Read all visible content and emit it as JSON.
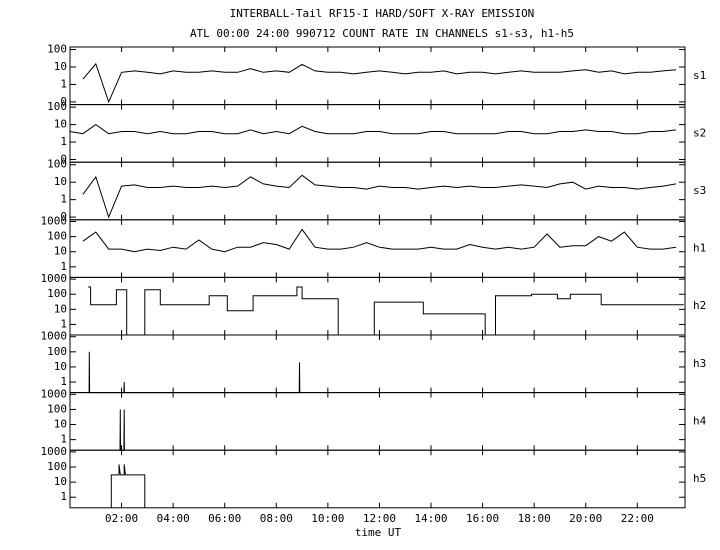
{
  "title": "INTERBALL-Tail RF15-I HARD/SOFT X-RAY EMISSION",
  "subtitle": "ATL 00:00 24:00 990712  COUNT RATE IN CHANNELS s1-s3, h1-h5",
  "xlabel": "time UT",
  "xlim": [
    0,
    23.85
  ],
  "xticks": [
    {
      "value": 2,
      "label": "02:00"
    },
    {
      "value": 4,
      "label": "04:00"
    },
    {
      "value": 6,
      "label": "06:00"
    },
    {
      "value": 8,
      "label": "08:00"
    },
    {
      "value": 10,
      "label": "10:00"
    },
    {
      "value": 12,
      "label": "12:00"
    },
    {
      "value": 14,
      "label": "14:00"
    },
    {
      "value": 16,
      "label": "16:00"
    },
    {
      "value": 18,
      "label": "18:00"
    },
    {
      "value": 20,
      "label": "20:00"
    },
    {
      "value": 22,
      "label": "22:00"
    }
  ],
  "chart_data": [
    {
      "type": "line",
      "name": "s1",
      "color": "#000000",
      "log_y": true,
      "ylim": [
        0.07,
        140
      ],
      "yticks": [
        100,
        10,
        1,
        {
          "value": 0.1,
          "label": "0"
        }
      ],
      "x": [
        0,
        0.5,
        1,
        1.5,
        2,
        2.5,
        3,
        3.5,
        4,
        4.5,
        5,
        5.5,
        6,
        6.5,
        7,
        7.5,
        8,
        8.5,
        9,
        9.5,
        10,
        10.5,
        11,
        11.5,
        12,
        12.5,
        13,
        13.5,
        14,
        14.5,
        15,
        15.5,
        16,
        16.5,
        17,
        17.5,
        18,
        18.5,
        19,
        19.5,
        20,
        20.5,
        21,
        21.5,
        22,
        22.5,
        23,
        23.5
      ],
      "values": [
        null,
        2,
        15,
        0.1,
        5,
        6,
        5,
        4,
        6,
        5,
        5,
        6,
        5,
        5,
        8,
        5,
        6,
        5,
        14,
        6,
        5,
        5,
        4,
        5,
        6,
        5,
        4,
        5,
        5,
        6,
        4,
        5,
        5,
        4,
        5,
        6,
        5,
        5,
        5,
        6,
        7,
        5,
        6,
        4,
        5,
        5,
        6,
        7
      ]
    },
    {
      "type": "line",
      "name": "s2",
      "color": "#000000",
      "log_y": true,
      "ylim": [
        0.07,
        140
      ],
      "yticks": [
        100,
        10,
        1,
        {
          "value": 0.1,
          "label": "0"
        }
      ],
      "x": [
        0,
        0.5,
        1,
        1.5,
        2,
        2.5,
        3,
        3.5,
        4,
        4.5,
        5,
        5.5,
        6,
        6.5,
        7,
        7.5,
        8,
        8.5,
        9,
        9.5,
        10,
        10.5,
        11,
        11.5,
        12,
        12.5,
        13,
        13.5,
        14,
        14.5,
        15,
        15.5,
        16,
        16.5,
        17,
        17.5,
        18,
        18.5,
        19,
        19.5,
        20,
        20.5,
        21,
        21.5,
        22,
        22.5,
        23,
        23.5
      ],
      "values": [
        4,
        3,
        10,
        3,
        4,
        4,
        3,
        4,
        3,
        3,
        4,
        4,
        3,
        3,
        5,
        3,
        4,
        3,
        8,
        4,
        3,
        3,
        3,
        4,
        4,
        3,
        3,
        3,
        4,
        4,
        3,
        3,
        3,
        3,
        4,
        4,
        3,
        3,
        4,
        4,
        5,
        4,
        4,
        3,
        3,
        4,
        4,
        5
      ]
    },
    {
      "type": "line",
      "name": "s3",
      "color": "#000000",
      "log_y": true,
      "ylim": [
        0.07,
        140
      ],
      "yticks": [
        100,
        10,
        1,
        {
          "value": 0.1,
          "label": "0"
        }
      ],
      "x": [
        0,
        0.5,
        1,
        1.5,
        2,
        2.5,
        3,
        3.5,
        4,
        4.5,
        5,
        5.5,
        6,
        6.5,
        7,
        7.5,
        8,
        8.5,
        9,
        9.5,
        10,
        10.5,
        11,
        11.5,
        12,
        12.5,
        13,
        13.5,
        14,
        14.5,
        15,
        15.5,
        16,
        16.5,
        17,
        17.5,
        18,
        18.5,
        19,
        19.5,
        20,
        20.5,
        21,
        21.5,
        22,
        22.5,
        23,
        23.5
      ],
      "values": [
        null,
        2,
        20,
        0.1,
        6,
        7,
        5,
        5,
        6,
        5,
        5,
        6,
        5,
        6,
        20,
        8,
        6,
        5,
        25,
        7,
        6,
        5,
        5,
        4,
        6,
        5,
        5,
        4,
        5,
        6,
        5,
        6,
        5,
        5,
        6,
        7,
        6,
        5,
        8,
        10,
        4,
        6,
        5,
        5,
        4,
        5,
        6,
        8
      ]
    },
    {
      "type": "line",
      "name": "h1",
      "color": "#000000",
      "log_y": true,
      "ylim": [
        0.2,
        1300
      ],
      "yticks": [
        1000,
        100,
        10,
        1
      ],
      "x": [
        0,
        0.5,
        1,
        1.5,
        2,
        2.5,
        3,
        3.5,
        4,
        4.5,
        5,
        5.5,
        6,
        6.5,
        7,
        7.5,
        8,
        8.5,
        9,
        9.5,
        10,
        10.5,
        11,
        11.5,
        12,
        12.5,
        13,
        13.5,
        14,
        14.5,
        15,
        15.5,
        16,
        16.5,
        17,
        17.5,
        18,
        18.5,
        19,
        19.5,
        20,
        20.5,
        21,
        21.5,
        22,
        22.5,
        23,
        23.5
      ],
      "values": [
        null,
        50,
        200,
        15,
        15,
        10,
        15,
        12,
        20,
        15,
        60,
        15,
        10,
        20,
        20,
        40,
        30,
        15,
        300,
        20,
        15,
        15,
        20,
        40,
        20,
        15,
        15,
        15,
        20,
        15,
        15,
        30,
        20,
        15,
        20,
        15,
        20,
        150,
        20,
        25,
        25,
        100,
        50,
        200,
        20,
        15,
        15,
        20
      ]
    },
    {
      "type": "line",
      "name": "h2",
      "color": "#000000",
      "log_y": true,
      "ylim": [
        0.2,
        1300
      ],
      "yticks": [
        1000,
        100,
        10,
        1
      ],
      "x": [
        0.7,
        0.8,
        0.8,
        1.8,
        1.8,
        2.2,
        2.2,
        2.9,
        2.9,
        3.5,
        3.5,
        5.4,
        5.4,
        6.1,
        6.1,
        7.1,
        7.1,
        8.8,
        8.8,
        9,
        9,
        10.4,
        10.4,
        11.8,
        11.8,
        13.7,
        13.7,
        16.1,
        16.1,
        16.5,
        16.5,
        17.9,
        17.9,
        18.9,
        18.9,
        19.4,
        19.4,
        20.6,
        20.6,
        23.8
      ],
      "values": [
        300,
        300,
        20,
        20,
        200,
        200,
        0.2,
        0.2,
        200,
        200,
        20,
        20,
        80,
        80,
        8,
        8,
        80,
        80,
        300,
        300,
        50,
        50,
        0.2,
        0.2,
        30,
        30,
        5,
        5,
        0.2,
        0.2,
        80,
        80,
        100,
        100,
        50,
        50,
        100,
        100,
        20,
        20
      ]
    },
    {
      "type": "line",
      "name": "h3",
      "color": "#000000",
      "log_y": true,
      "ylim": [
        0.2,
        1300
      ],
      "yticks": [
        1000,
        100,
        10,
        1
      ],
      "x": [
        0.74,
        0.75,
        0.76,
        2.09,
        2.1,
        2.11,
        8.89,
        8.9,
        8.91
      ],
      "values": [
        0.2,
        100,
        0.2,
        0.2,
        1,
        0.2,
        0.2,
        20,
        0.2
      ]
    },
    {
      "type": "line",
      "name": "h4",
      "color": "#000000",
      "log_y": true,
      "ylim": [
        0.2,
        1300
      ],
      "yticks": [
        1000,
        100,
        10,
        1
      ],
      "x": [
        1.94,
        1.95,
        1.96,
        2.09,
        2.1,
        2.11
      ],
      "values": [
        0.2,
        100,
        0.2,
        0.2,
        100,
        0.2
      ]
    },
    {
      "type": "line",
      "name": "h5",
      "color": "#000000",
      "log_y": true,
      "ylim": [
        0.2,
        1300
      ],
      "yticks": [
        1000,
        100,
        10,
        1
      ],
      "x": [
        1.6,
        1.6,
        1.9,
        1.9,
        1.95,
        2.1,
        2.1,
        2.15,
        2.9,
        2.9
      ],
      "values": [
        0.2,
        30,
        30,
        150,
        30,
        30,
        150,
        30,
        30,
        0.2
      ]
    }
  ]
}
